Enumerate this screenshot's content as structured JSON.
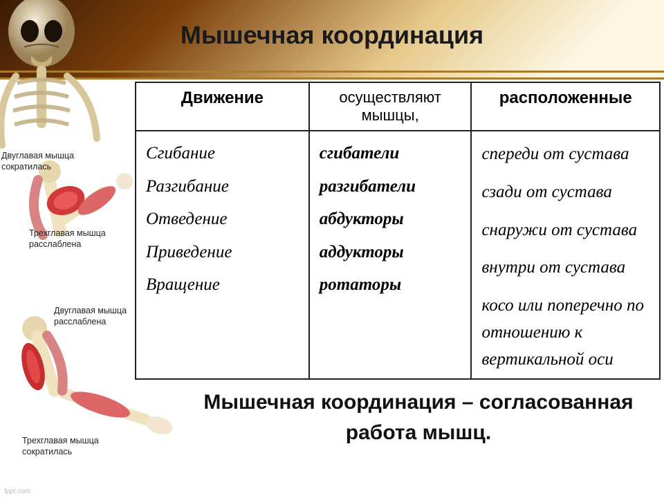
{
  "title": "Мышечная координация",
  "header": {
    "gradient_colors": [
      "#3a1b06",
      "#7a3e0a",
      "#e6c98a",
      "#fdf6e3"
    ],
    "line_color": "#a87b2c"
  },
  "arm_labels": {
    "upper_biceps": "Двуглавая мышца\nсократилась",
    "upper_triceps": "Трехглавая мышца\nрасслаблена",
    "lower_biceps": "Двуглавая мышца\nрасслаблена",
    "lower_triceps": "Трехглавая мышца\nсократилась"
  },
  "table": {
    "columns": [
      "Движение",
      "осуществляют мышцы,",
      "расположенные"
    ],
    "col_widths": [
      "33%",
      "31%",
      "36%"
    ],
    "movements": [
      "Сгибание",
      "Разгибание",
      "Отведение",
      "Приведение",
      "Вращение"
    ],
    "muscles": [
      "сгибатели",
      "разгибатели",
      "абдукторы",
      "аддукторы",
      "ротаторы"
    ],
    "locations": [
      "спереди от сустава",
      "сзади от сустава",
      "снаружи от сустава",
      "внутри от сустава",
      "косо или поперечно по отношению к вертикальной оси"
    ],
    "header_fontsize": 24,
    "cell_fontsize": 25,
    "border_color": "#222222"
  },
  "definition": "Мышечная координация – согласованная работа мышц.",
  "footer": "fppt.com",
  "colors": {
    "skull": "#e8dcc4",
    "skull_shadow": "#8a7350",
    "bone_light": "#f5e8c8",
    "bone_dark": "#c9a868",
    "muscle_red": "#d13838",
    "muscle_dark": "#8a1f1f",
    "skin": "#f3e5d2"
  }
}
